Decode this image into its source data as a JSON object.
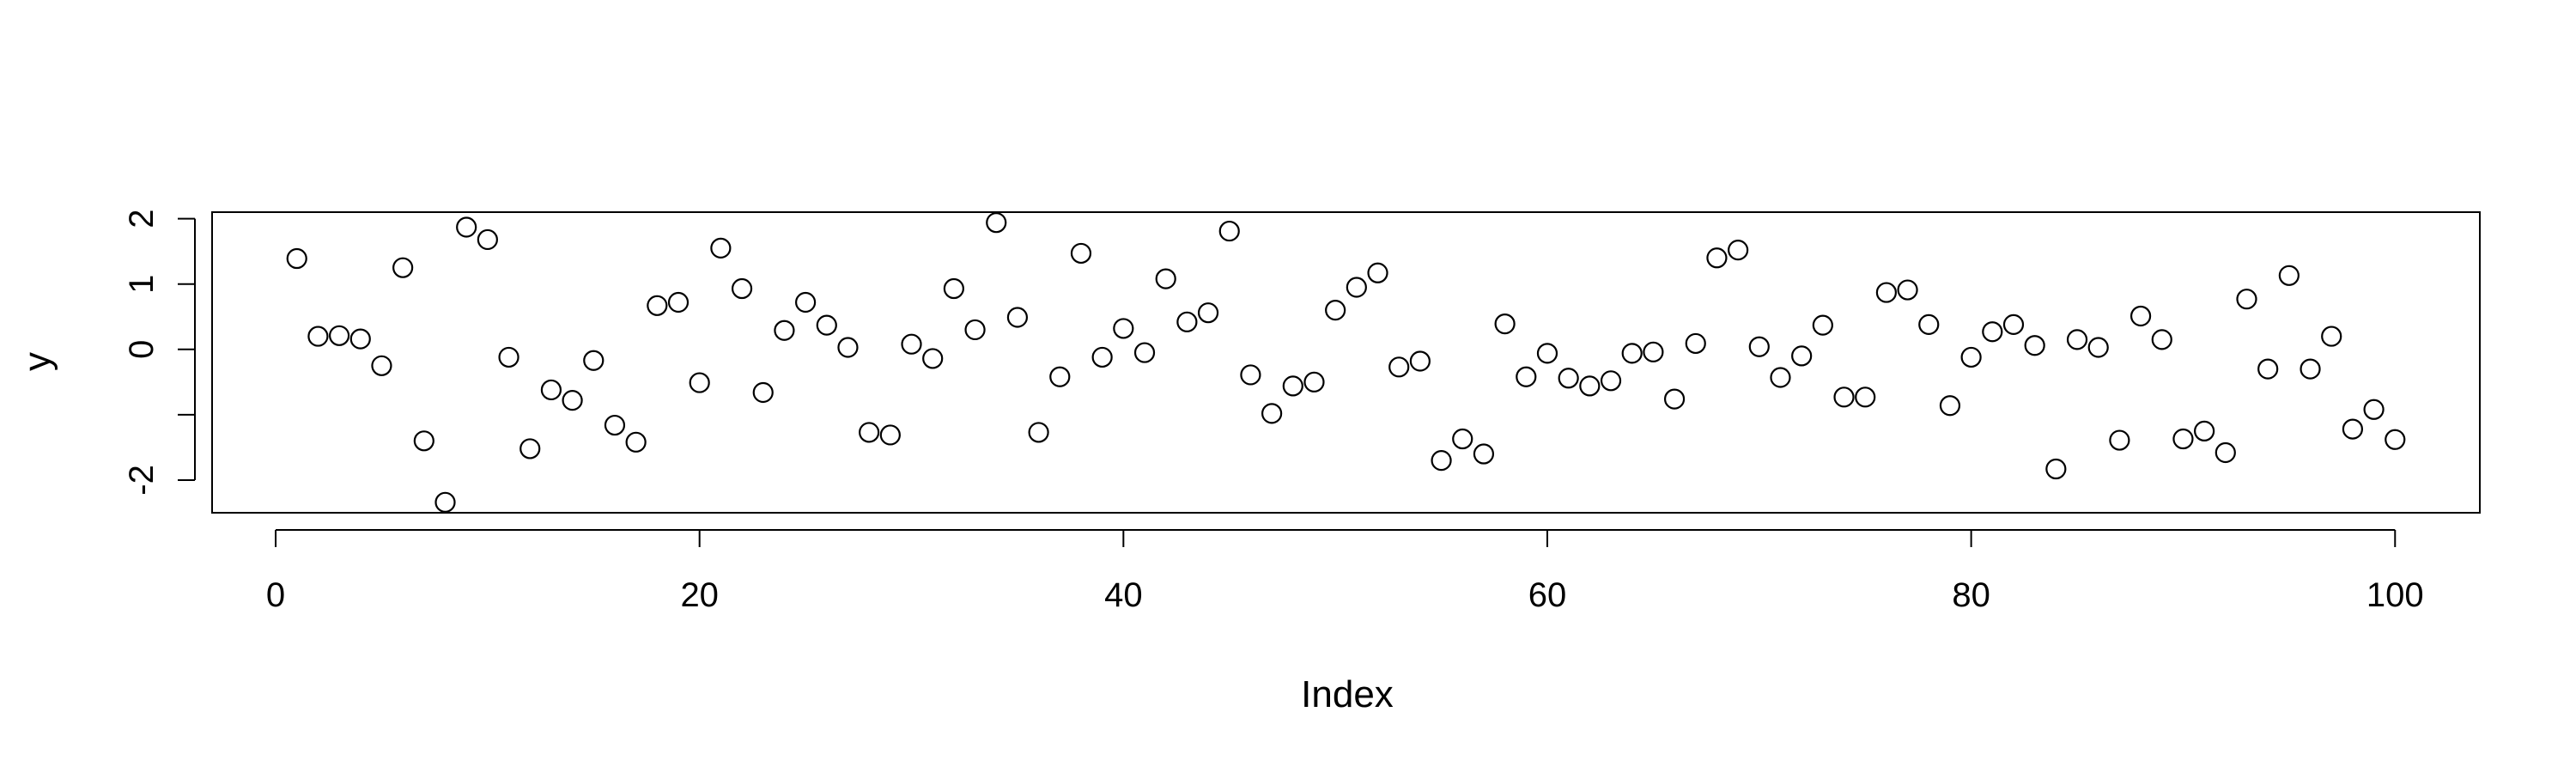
{
  "chart_data": {
    "type": "scatter",
    "title": "",
    "xlabel": "Index",
    "ylabel": "y",
    "xlim": [
      -3,
      104
    ],
    "ylim": [
      -2.5,
      2.1
    ],
    "x_ticks": [
      0,
      20,
      40,
      60,
      80,
      100
    ],
    "y_ticks": [
      -2,
      -1,
      0,
      1,
      2
    ],
    "y_tick_labels": [
      "-2",
      "",
      "0",
      "1",
      "2"
    ],
    "grid": false,
    "legend": "none",
    "series": [
      {
        "x": [
          1,
          2,
          3,
          4,
          5,
          6,
          7,
          8,
          9,
          10,
          11,
          12,
          13,
          14,
          15,
          16,
          17,
          18,
          19,
          20,
          21,
          22,
          23,
          24,
          25,
          26,
          27,
          28,
          29,
          30,
          31,
          32,
          33,
          34,
          35,
          36,
          37,
          38,
          39,
          40,
          41,
          42,
          43,
          44,
          45,
          46,
          47,
          48,
          49,
          50,
          51,
          52,
          53,
          54,
          55,
          56,
          57,
          58,
          59,
          60,
          61,
          62,
          63,
          64,
          65,
          66,
          67,
          68,
          69,
          70,
          71,
          72,
          73,
          74,
          75,
          76,
          77,
          78,
          79,
          80,
          81,
          82,
          83,
          84,
          85,
          86,
          87,
          88,
          89,
          90,
          91,
          92,
          93,
          94,
          95,
          96,
          97,
          98,
          99,
          100
        ],
        "y": [
          1.39,
          0.2,
          0.21,
          0.16,
          -0.25,
          1.25,
          -1.4,
          -2.34,
          1.87,
          1.68,
          -0.12,
          -1.52,
          -0.62,
          -0.78,
          -0.17,
          -1.16,
          -1.42,
          0.67,
          0.72,
          -0.51,
          1.55,
          0.93,
          -0.66,
          0.29,
          0.72,
          0.37,
          0.03,
          -1.27,
          -1.31,
          0.08,
          -0.14,
          0.93,
          0.3,
          1.94,
          0.49,
          -1.27,
          -0.42,
          1.47,
          -0.12,
          0.32,
          -0.05,
          1.08,
          0.42,
          0.56,
          1.81,
          -0.39,
          -0.98,
          -0.56,
          -0.5,
          0.6,
          0.95,
          1.17,
          -0.27,
          -0.18,
          -1.7,
          -1.37,
          -1.6,
          0.39,
          -0.42,
          -0.06,
          -0.44,
          -0.56,
          -0.48,
          -0.06,
          -0.04,
          -0.76,
          0.09,
          1.4,
          1.52,
          0.04,
          -0.43,
          -0.1,
          0.37,
          -0.73,
          -0.73,
          0.87,
          0.91,
          0.38,
          -0.86,
          -0.12,
          0.27,
          0.38,
          0.06,
          -1.83,
          0.15,
          0.03,
          -1.39,
          0.51,
          0.15,
          -1.37,
          -1.25,
          -1.58,
          0.77,
          -0.3,
          1.13,
          -0.3,
          0.2,
          -1.22,
          -0.92,
          -1.38
        ]
      }
    ]
  }
}
